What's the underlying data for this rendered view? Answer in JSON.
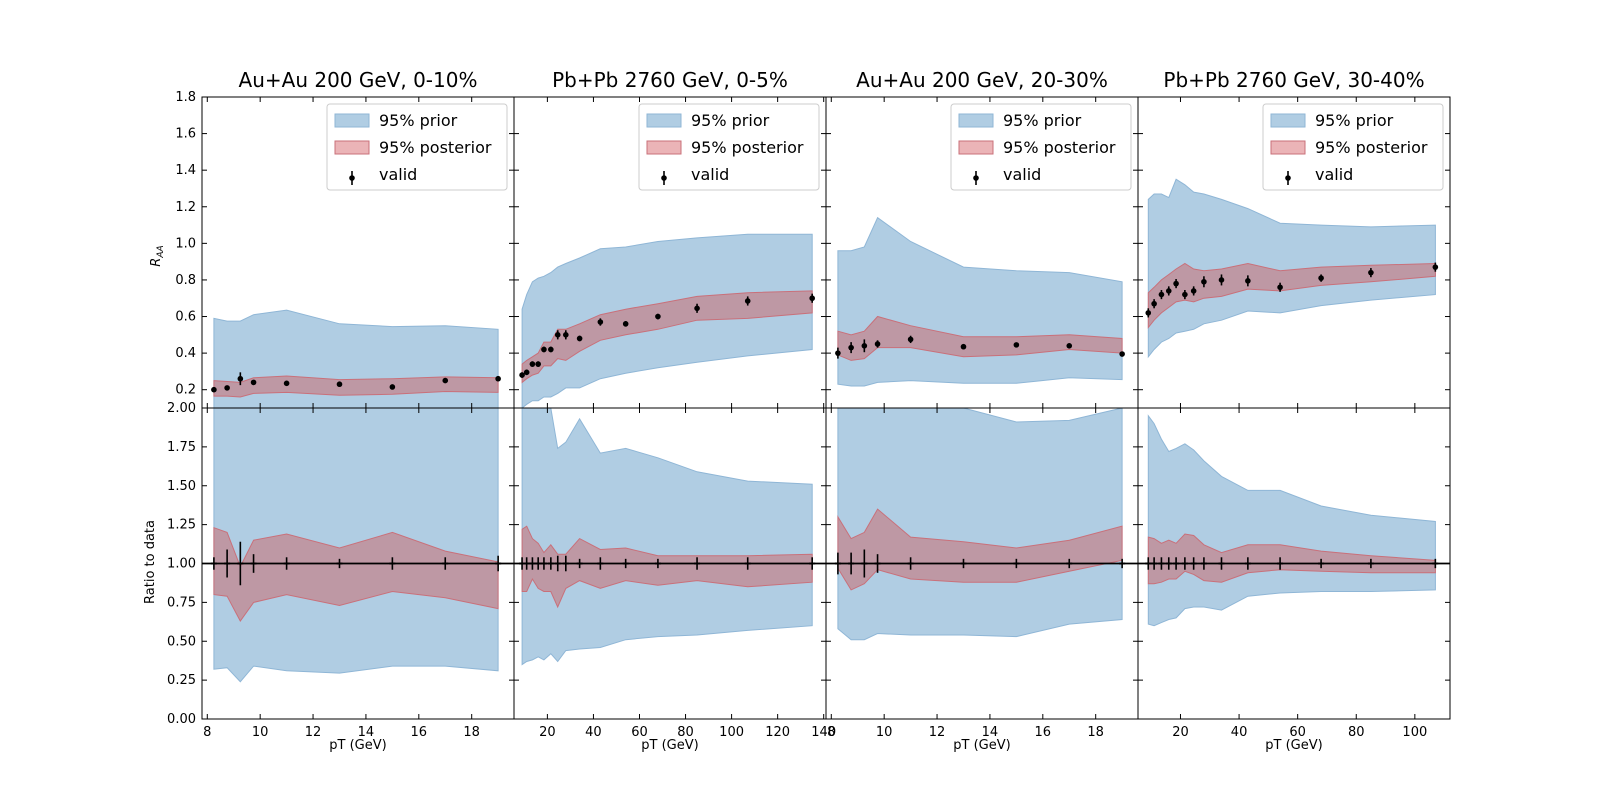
{
  "figure": {
    "top_ylabel": "R_AA",
    "top_ylabel_main": "R",
    "top_ylabel_sub": "AA",
    "bottom_ylabel": "Ratio to data",
    "xlabel": "pT (GeV)",
    "top_yticks": [
      "0.2",
      "0.4",
      "0.6",
      "0.8",
      "1.0",
      "1.2",
      "1.4",
      "1.6",
      "1.8"
    ],
    "bottom_yticks": [
      "0.00",
      "0.25",
      "0.50",
      "0.75",
      "1.00",
      "1.25",
      "1.50",
      "1.75",
      "2.00"
    ],
    "legend": {
      "prior": "95% prior",
      "posterior": "95% posterior",
      "valid": "valid"
    },
    "colors": {
      "prior": "#b0cde3",
      "prior_edge": "#8fb6d6",
      "posterior": "#e49b9f",
      "posterior_edge": "#c9707a",
      "overlap": "#be98a4",
      "points": "#000000"
    }
  },
  "chart_data": [
    {
      "type": "area",
      "title": "Au+Au 200 GeV, 0-10%",
      "xlabel": "pT (GeV)",
      "xlim": [
        7.8,
        19.6
      ],
      "xticks": [
        8,
        10,
        12,
        14,
        16,
        18
      ],
      "ylim": [
        0.1,
        1.8
      ],
      "ratio_ylim": [
        0.0,
        2.0
      ],
      "data": {
        "x": [
          8.25,
          8.75,
          9.25,
          9.75,
          11.0,
          13.0,
          15.0,
          17.0,
          19.0
        ],
        "y": [
          0.2,
          0.21,
          0.26,
          0.24,
          0.235,
          0.23,
          0.215,
          0.25,
          0.26
        ],
        "yerr": [
          0.01,
          0.012,
          0.035,
          0.012,
          0.012,
          0.01,
          0.01,
          0.012,
          0.012
        ]
      },
      "prior": {
        "x": [
          8.25,
          8.75,
          9.25,
          9.75,
          11.0,
          13.0,
          15.0,
          17.0,
          19.0
        ],
        "lo": [
          0.07,
          0.075,
          0.065,
          0.085,
          0.08,
          0.075,
          0.075,
          0.085,
          0.08
        ],
        "hi": [
          0.59,
          0.575,
          0.575,
          0.61,
          0.635,
          0.56,
          0.545,
          0.55,
          0.53
        ]
      },
      "posterior": {
        "x": [
          8.25,
          8.75,
          9.25,
          9.75,
          11.0,
          13.0,
          15.0,
          17.0,
          19.0
        ],
        "lo": [
          0.165,
          0.165,
          0.16,
          0.18,
          0.185,
          0.17,
          0.175,
          0.19,
          0.185
        ],
        "hi": [
          0.25,
          0.245,
          0.24,
          0.265,
          0.275,
          0.255,
          0.26,
          0.27,
          0.265
        ]
      },
      "ratio": {
        "x": [
          8.25,
          8.75,
          9.25,
          9.75,
          11.0,
          13.0,
          15.0,
          17.0,
          19.0
        ],
        "prior_lo": [
          0.32,
          0.33,
          0.24,
          0.34,
          0.31,
          0.295,
          0.34,
          0.34,
          0.31
        ],
        "prior_hi": [
          2.0,
          2.0,
          2.0,
          2.0,
          2.0,
          2.0,
          2.0,
          2.0,
          2.0
        ],
        "post_lo": [
          0.8,
          0.79,
          0.63,
          0.75,
          0.8,
          0.73,
          0.82,
          0.78,
          0.71
        ],
        "post_hi": [
          1.23,
          1.2,
          0.98,
          1.15,
          1.19,
          1.1,
          1.2,
          1.08,
          1.01
        ],
        "err": [
          0.04,
          0.09,
          0.14,
          0.06,
          0.04,
          0.03,
          0.04,
          0.04,
          0.05
        ]
      }
    },
    {
      "type": "area",
      "title": "Pb+Pb 2760 GeV, 0-5%",
      "xlabel": "pT (GeV)",
      "xlim": [
        5.5,
        141
      ],
      "xticks": [
        20,
        40,
        60,
        80,
        100,
        120,
        140
      ],
      "ylim": [
        0.1,
        1.8
      ],
      "ratio_ylim": [
        0.0,
        2.0
      ],
      "data": {
        "x": [
          9,
          11,
          13.5,
          16,
          18.5,
          21.5,
          24.5,
          28,
          34,
          43,
          54,
          68,
          85,
          107,
          135
        ],
        "y": [
          0.28,
          0.295,
          0.34,
          0.34,
          0.42,
          0.42,
          0.5,
          0.5,
          0.48,
          0.57,
          0.56,
          0.6,
          0.645,
          0.685,
          0.7
        ],
        "yerr": [
          0.015,
          0.015,
          0.015,
          0.015,
          0.015,
          0.015,
          0.025,
          0.025,
          0.015,
          0.02,
          0.015,
          0.015,
          0.025,
          0.025,
          0.025
        ]
      },
      "prior": {
        "x": [
          9,
          11,
          13.5,
          16,
          18.5,
          21.5,
          24.5,
          28,
          34,
          43,
          54,
          68,
          85,
          107,
          135
        ],
        "lo": [
          0.1,
          0.12,
          0.14,
          0.14,
          0.16,
          0.16,
          0.18,
          0.21,
          0.21,
          0.26,
          0.29,
          0.32,
          0.35,
          0.385,
          0.42
        ],
        "hi": [
          0.64,
          0.72,
          0.79,
          0.81,
          0.82,
          0.84,
          0.87,
          0.89,
          0.92,
          0.97,
          0.98,
          1.01,
          1.03,
          1.05,
          1.05
        ]
      },
      "posterior": {
        "x": [
          9,
          11,
          13.5,
          16,
          18.5,
          21.5,
          24.5,
          28,
          34,
          43,
          54,
          68,
          85,
          107,
          135
        ],
        "lo": [
          0.24,
          0.26,
          0.28,
          0.29,
          0.33,
          0.33,
          0.37,
          0.36,
          0.41,
          0.47,
          0.5,
          0.53,
          0.58,
          0.59,
          0.62
        ],
        "hi": [
          0.34,
          0.36,
          0.38,
          0.4,
          0.46,
          0.46,
          0.53,
          0.53,
          0.56,
          0.61,
          0.64,
          0.67,
          0.71,
          0.73,
          0.74
        ]
      },
      "ratio": {
        "x": [
          9,
          11,
          13.5,
          16,
          18.5,
          21.5,
          24.5,
          28,
          34,
          43,
          54,
          68,
          85,
          107,
          135
        ],
        "prior_lo": [
          0.35,
          0.37,
          0.38,
          0.4,
          0.38,
          0.42,
          0.37,
          0.44,
          0.45,
          0.46,
          0.51,
          0.53,
          0.54,
          0.57,
          0.6
        ],
        "prior_hi": [
          2.0,
          2.0,
          2.0,
          2.0,
          2.0,
          2.0,
          1.74,
          1.78,
          1.93,
          1.71,
          1.74,
          1.68,
          1.59,
          1.53,
          1.51
        ],
        "post_lo": [
          0.82,
          0.82,
          0.9,
          0.84,
          0.82,
          0.82,
          0.72,
          0.84,
          0.89,
          0.84,
          0.89,
          0.86,
          0.89,
          0.85,
          0.88
        ],
        "post_hi": [
          1.22,
          1.24,
          1.16,
          1.13,
          1.07,
          1.12,
          1.06,
          1.06,
          1.16,
          1.09,
          1.1,
          1.05,
          1.05,
          1.05,
          1.06
        ],
        "err": [
          0.04,
          0.04,
          0.04,
          0.04,
          0.04,
          0.04,
          0.05,
          0.05,
          0.03,
          0.04,
          0.03,
          0.03,
          0.04,
          0.04,
          0.04
        ]
      }
    },
    {
      "type": "area",
      "title": "Au+Au 200 GeV, 20-30%",
      "xlabel": "pT (GeV)",
      "xlim": [
        7.8,
        19.6
      ],
      "xticks": [
        8,
        10,
        12,
        14,
        16,
        18
      ],
      "ylim": [
        0.1,
        1.8
      ],
      "ratio_ylim": [
        0.0,
        2.0
      ],
      "data": {
        "x": [
          8.25,
          8.75,
          9.25,
          9.75,
          11.0,
          13.0,
          15.0,
          17.0,
          19.0
        ],
        "y": [
          0.4,
          0.43,
          0.44,
          0.45,
          0.475,
          0.435,
          0.445,
          0.44,
          0.395
        ],
        "yerr": [
          0.03,
          0.03,
          0.035,
          0.02,
          0.02,
          0.01,
          0.01,
          0.01,
          0.01
        ]
      },
      "prior": {
        "x": [
          8.25,
          8.75,
          9.25,
          9.75,
          11.0,
          13.0,
          15.0,
          17.0,
          19.0
        ],
        "lo": [
          0.23,
          0.22,
          0.22,
          0.24,
          0.25,
          0.235,
          0.235,
          0.265,
          0.255
        ],
        "hi": [
          0.96,
          0.96,
          0.98,
          1.14,
          1.01,
          0.87,
          0.85,
          0.84,
          0.79
        ]
      },
      "posterior": {
        "x": [
          8.25,
          8.75,
          9.25,
          9.75,
          11.0,
          13.0,
          15.0,
          17.0,
          19.0
        ],
        "lo": [
          0.39,
          0.36,
          0.37,
          0.43,
          0.43,
          0.38,
          0.39,
          0.42,
          0.4
        ],
        "hi": [
          0.52,
          0.5,
          0.52,
          0.6,
          0.55,
          0.49,
          0.49,
          0.5,
          0.48
        ]
      },
      "ratio": {
        "x": [
          8.25,
          8.75,
          9.25,
          9.75,
          11.0,
          13.0,
          15.0,
          17.0,
          19.0
        ],
        "prior_lo": [
          0.58,
          0.51,
          0.51,
          0.55,
          0.54,
          0.54,
          0.53,
          0.61,
          0.64
        ],
        "prior_hi": [
          2.0,
          2.0,
          2.0,
          2.0,
          2.0,
          2.0,
          1.91,
          1.92,
          2.0
        ],
        "post_lo": [
          0.97,
          0.83,
          0.87,
          0.96,
          0.9,
          0.88,
          0.88,
          0.95,
          1.02
        ],
        "post_hi": [
          1.3,
          1.16,
          1.2,
          1.35,
          1.17,
          1.14,
          1.1,
          1.15,
          1.24
        ],
        "err": [
          0.07,
          0.07,
          0.09,
          0.06,
          0.04,
          0.03,
          0.03,
          0.03,
          0.03
        ]
      }
    },
    {
      "type": "area",
      "title": "Pb+Pb 2760 GeV, 30-40%",
      "xlabel": "pT (GeV)",
      "xlim": [
        5.5,
        112
      ],
      "xticks": [
        20,
        40,
        60,
        80,
        100
      ],
      "ylim": [
        0.1,
        1.8
      ],
      "ratio_ylim": [
        0.0,
        2.0
      ],
      "data": {
        "x": [
          9,
          11,
          13.5,
          16,
          18.5,
          21.5,
          24.5,
          28,
          34,
          43,
          54,
          68,
          85,
          107
        ],
        "y": [
          0.62,
          0.67,
          0.72,
          0.74,
          0.78,
          0.72,
          0.74,
          0.79,
          0.8,
          0.795,
          0.76,
          0.81,
          0.84,
          0.87
        ],
        "yerr": [
          0.025,
          0.025,
          0.025,
          0.025,
          0.025,
          0.025,
          0.025,
          0.03,
          0.03,
          0.03,
          0.025,
          0.02,
          0.025,
          0.025
        ]
      },
      "prior": {
        "x": [
          9,
          11,
          13.5,
          16,
          18.5,
          21.5,
          24.5,
          28,
          34,
          43,
          54,
          68,
          85,
          107
        ],
        "lo": [
          0.38,
          0.42,
          0.46,
          0.48,
          0.51,
          0.52,
          0.53,
          0.56,
          0.58,
          0.63,
          0.62,
          0.66,
          0.69,
          0.72
        ],
        "hi": [
          1.24,
          1.27,
          1.27,
          1.25,
          1.35,
          1.32,
          1.28,
          1.27,
          1.24,
          1.19,
          1.11,
          1.1,
          1.09,
          1.1
        ]
      },
      "posterior": {
        "x": [
          9,
          11,
          13.5,
          16,
          18.5,
          21.5,
          24.5,
          28,
          34,
          43,
          54,
          68,
          85,
          107
        ],
        "lo": [
          0.54,
          0.58,
          0.62,
          0.65,
          0.68,
          0.69,
          0.68,
          0.7,
          0.71,
          0.75,
          0.74,
          0.77,
          0.79,
          0.82
        ],
        "hi": [
          0.73,
          0.76,
          0.8,
          0.83,
          0.86,
          0.89,
          0.86,
          0.85,
          0.86,
          0.89,
          0.85,
          0.87,
          0.88,
          0.89
        ]
      },
      "ratio": {
        "x": [
          9,
          11,
          13.5,
          16,
          18.5,
          21.5,
          24.5,
          28,
          34,
          43,
          54,
          68,
          85,
          107
        ],
        "prior_lo": [
          0.61,
          0.6,
          0.62,
          0.64,
          0.65,
          0.71,
          0.72,
          0.72,
          0.7,
          0.79,
          0.81,
          0.82,
          0.82,
          0.83
        ],
        "prior_hi": [
          1.95,
          1.9,
          1.8,
          1.72,
          1.74,
          1.77,
          1.73,
          1.66,
          1.56,
          1.47,
          1.47,
          1.37,
          1.31,
          1.27
        ],
        "post_lo": [
          0.87,
          0.87,
          0.88,
          0.9,
          0.9,
          0.95,
          0.93,
          0.89,
          0.88,
          0.94,
          0.96,
          0.95,
          0.94,
          0.94
        ],
        "post_hi": [
          1.17,
          1.16,
          1.13,
          1.15,
          1.13,
          1.19,
          1.18,
          1.12,
          1.07,
          1.12,
          1.12,
          1.08,
          1.05,
          1.02
        ],
        "err": [
          0.04,
          0.04,
          0.04,
          0.04,
          0.04,
          0.04,
          0.04,
          0.04,
          0.04,
          0.04,
          0.04,
          0.03,
          0.03,
          0.03
        ]
      }
    }
  ]
}
